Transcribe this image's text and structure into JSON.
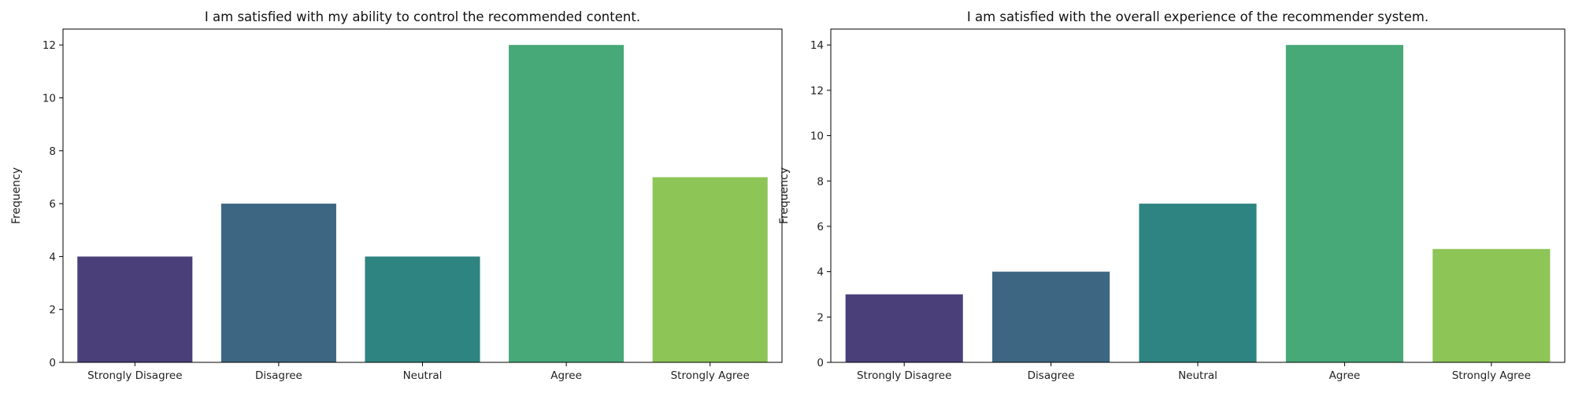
{
  "chart_data": [
    {
      "type": "bar",
      "title": "I am satisfied with my ability to control the recommended content.",
      "xlabel": "",
      "ylabel": "Frequency",
      "categories": [
        "Strongly Disagree",
        "Disagree",
        "Neutral",
        "Agree",
        "Strongly Agree"
      ],
      "values": [
        4,
        6,
        4,
        12,
        7
      ],
      "colors": [
        "#4b3f7a",
        "#3c6682",
        "#2e8480",
        "#47a878",
        "#8dc556"
      ],
      "ylim": [
        0,
        12.6
      ],
      "yticks": [
        0,
        2,
        4,
        6,
        8,
        10,
        12
      ],
      "grid": false,
      "legend": "none"
    },
    {
      "type": "bar",
      "title": "I am satisfied with the overall experience of the recommender system.",
      "xlabel": "",
      "ylabel": "Frequency",
      "categories": [
        "Strongly Disagree",
        "Disagree",
        "Neutral",
        "Agree",
        "Strongly Agree"
      ],
      "values": [
        3,
        4,
        7,
        14,
        5
      ],
      "colors": [
        "#4b3f7a",
        "#3c6682",
        "#2e8480",
        "#47a878",
        "#8dc556"
      ],
      "ylim": [
        0,
        14.7
      ],
      "yticks": [
        0,
        2,
        4,
        6,
        8,
        10,
        12,
        14
      ],
      "grid": false,
      "legend": "none"
    }
  ]
}
